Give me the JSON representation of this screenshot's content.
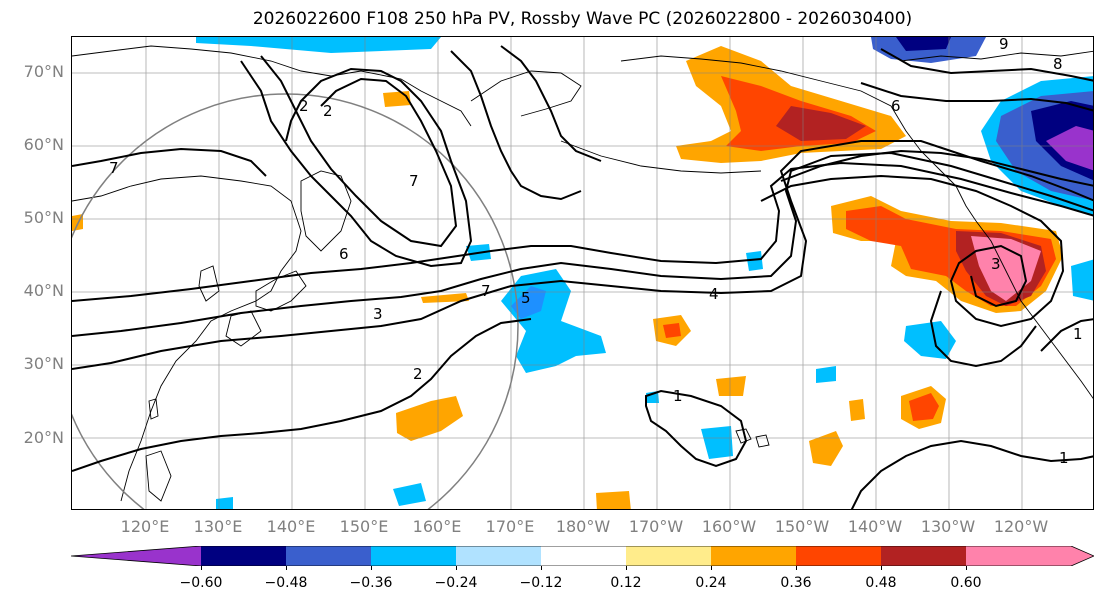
{
  "title": "2026022600 F108 250 hPa PV, Rossby Wave PC (2026022800 - 2026030400)",
  "latitude_labels": [
    "70°N",
    "60°N",
    "50°N",
    "40°N",
    "30°N",
    "20°N"
  ],
  "longitude_labels": [
    "120°E",
    "130°E",
    "140°E",
    "150°E",
    "160°E",
    "170°E",
    "180°W",
    "170°W",
    "160°W",
    "150°W",
    "140°W",
    "130°W",
    "120°W"
  ],
  "colorbar": {
    "tick_labels": [
      "−0.60",
      "−0.48",
      "−0.36",
      "−0.24",
      "−0.12",
      "0.12",
      "0.24",
      "0.36",
      "0.48",
      "0.60"
    ],
    "colors": [
      "#9933cc",
      "#000080",
      "#3a5fcd",
      "#00bfff",
      "#b0e2ff",
      "#ffffff",
      "#ffec8b",
      "#ffa500",
      "#ff4500",
      "#b22222",
      "#ff82ab"
    ]
  },
  "contour_labels": [
    "2",
    "2",
    "3",
    "3",
    "4",
    "5",
    "6",
    "7",
    "7",
    "7",
    "1",
    "1",
    "1",
    "8",
    "9",
    "2",
    "6"
  ]
}
